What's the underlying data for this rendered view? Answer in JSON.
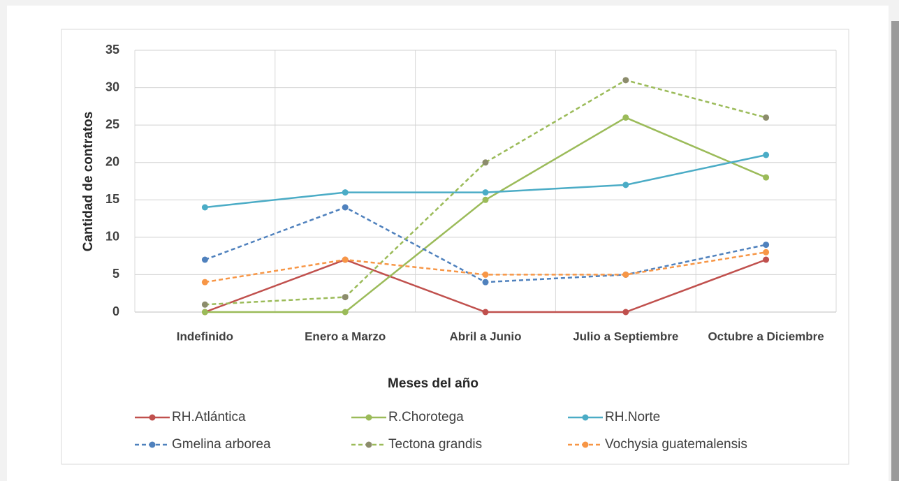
{
  "chart_data": {
    "type": "line",
    "xlabel": "Meses del año",
    "ylabel": "Cantidad de contratos",
    "categories": [
      "Indefinido",
      "Enero a Marzo",
      "Abril a Junio",
      "Julio a Septiembre",
      "Octubre a Diciembre"
    ],
    "ylim": [
      0,
      35
    ],
    "yticks": [
      0,
      5,
      10,
      15,
      20,
      25,
      30,
      35
    ],
    "grid": true,
    "legend": "bottom",
    "series": [
      {
        "name": "RH.Atlántica",
        "color": "#c0504d",
        "values": [
          0,
          7,
          0,
          0,
          7
        ],
        "line_style": "solid"
      },
      {
        "name": "R.Chorotega",
        "color": "#9bbb59",
        "values": [
          0,
          0,
          15,
          26,
          18
        ],
        "line_style": "solid"
      },
      {
        "name": "RH.Norte",
        "color": "#4bacc6",
        "values": [
          14,
          16,
          16,
          17,
          21
        ],
        "line_style": "solid"
      },
      {
        "name": "Gmelina arborea",
        "color": "#4f81bd",
        "values": [
          7,
          14,
          4,
          5,
          9
        ],
        "line_style": "dashed"
      },
      {
        "name": "Tectona grandis",
        "color": "#9bbb59",
        "marker_color": "#8c8c6c",
        "values": [
          1,
          2,
          20,
          31,
          26
        ],
        "line_style": "dashed"
      },
      {
        "name": "Vochysia guatemalensis",
        "color": "#f79646",
        "values": [
          4,
          7,
          5,
          5,
          8
        ],
        "line_style": "dashed"
      }
    ]
  }
}
